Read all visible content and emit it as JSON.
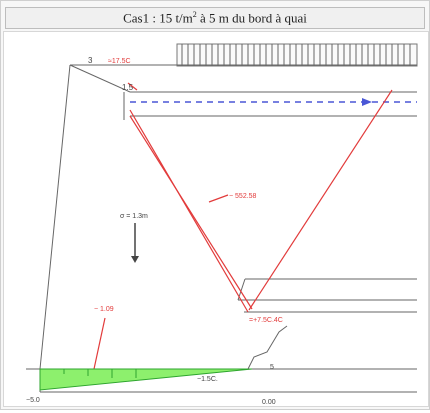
{
  "diagram": {
    "title_main": "Cas1 : 15 t/m",
    "title_sup": "2",
    "title_rest": " à 5 m du bord à quai",
    "colors": {
      "background": "#ffffff",
      "line": "#555555",
      "red": "#e23b3b",
      "blue": "#4a57d6",
      "green": "#8df06d",
      "green_edge": "#2ea52e"
    },
    "labels": {
      "top_left_note": "3",
      "near_top_red": "≈17.5C",
      "near_bracket": "1.5",
      "mid_red": "− 552.58",
      "arrow_note": "σ = 1.3m",
      "bottom_red_left": "− 1.09",
      "bottom_red_mid": "=+7.5C.4C",
      "dimension_mid": "−1.5C.",
      "bottom_axis": "0.00",
      "bottom_left_mark": "−5.0",
      "bottom_right_mark": "5"
    }
  }
}
